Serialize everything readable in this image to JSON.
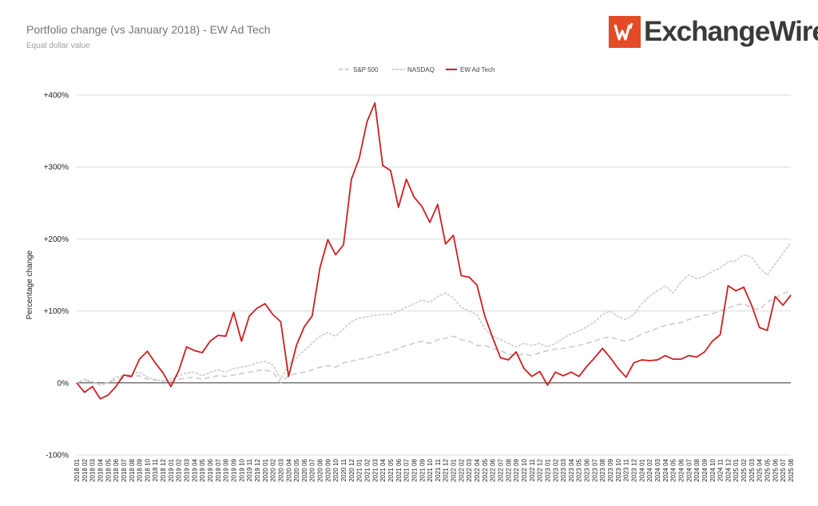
{
  "header": {
    "title": "Portfolio change (vs January 2018) - EW Ad Tech",
    "subtitle": "Equal dollar value",
    "logo_text": "ExchangeWire",
    "logo_mark": "W"
  },
  "colors": {
    "sp500": "#cccccc",
    "nasdaq": "#cccccc",
    "ewadtech": "#cc1f1f",
    "logo": "#e24b26"
  },
  "chart_data": {
    "type": "line",
    "title": "Portfolio change (vs January 2018) - EW Ad Tech",
    "subtitle": "Equal dollar value",
    "xlabel": "",
    "ylabel": "Percentage change",
    "ylim": [
      -100,
      400
    ],
    "yticks": [
      -100,
      0,
      100,
      200,
      300,
      400
    ],
    "ytick_labels": [
      "-100%",
      "0%",
      "+100%",
      "+200%",
      "+300%",
      "+400%"
    ],
    "grid": true,
    "legend_position": "top",
    "x": [
      "2018 01",
      "2018 02",
      "2018 03",
      "2018 04",
      "2018 05",
      "2018 06",
      "2018 07",
      "2018 08",
      "2018 09",
      "2018 10",
      "2018 11",
      "2018 12",
      "2019 01",
      "2019 02",
      "2019 03",
      "2019 04",
      "2019 05",
      "2019 06",
      "2019 07",
      "2019 08",
      "2019 09",
      "2019 10",
      "2019 11",
      "2019 12",
      "2020 01",
      "2020 02",
      "2020 03",
      "2020 04",
      "2020 05",
      "2020 06",
      "2020 07",
      "2020 08",
      "2020 09",
      "2020 10",
      "2020 11",
      "2020 12",
      "2021 01",
      "2021 02",
      "2021 03",
      "2021 04",
      "2021 05",
      "2021 06",
      "2021 07",
      "2021 08",
      "2021 09",
      "2021 10",
      "2021 11",
      "2021 12",
      "2022 01",
      "2022 02",
      "2022 03",
      "2022 04",
      "2022 05",
      "2022 06",
      "2022 07",
      "2022 08",
      "2022 09",
      "2022 10",
      "2022 11",
      "2022 12",
      "2023 01",
      "2023 02",
      "2023 03",
      "2023 04",
      "2023 05",
      "2023 06",
      "2023 07",
      "2023 08",
      "2023 09",
      "2023 10",
      "2023 11",
      "2023 12",
      "2024 01",
      "2024 02",
      "2024 03",
      "2024 04",
      "2024 05",
      "2024 06",
      "2024 07",
      "2024 08",
      "2024 09",
      "2024 10",
      "2024 11",
      "2024 12",
      "2025 01",
      "2025 02",
      "2025 03",
      "2025 04",
      "2025 05",
      "2025 06",
      "2025 07",
      "2025 08"
    ],
    "series": [
      {
        "name": "S&P 500",
        "style": "dashed",
        "color": "#cccccc",
        "values": [
          0,
          4,
          0,
          -2,
          0,
          5,
          7,
          9,
          10,
          5,
          4,
          3,
          2,
          5,
          7,
          8,
          5,
          8,
          10,
          9,
          11,
          13,
          15,
          17,
          18,
          15,
          0,
          10,
          13,
          15,
          18,
          22,
          24,
          22,
          28,
          30,
          33,
          35,
          38,
          40,
          44,
          48,
          52,
          55,
          58,
          55,
          60,
          62,
          65,
          60,
          58,
          52,
          52,
          48,
          45,
          40,
          38,
          40,
          38,
          42,
          45,
          47,
          48,
          50,
          52,
          55,
          58,
          62,
          64,
          60,
          58,
          62,
          68,
          72,
          76,
          80,
          82,
          84,
          88,
          92,
          94,
          96,
          100,
          104,
          108,
          110,
          104,
          102,
          112,
          118,
          124,
          128
        ]
      },
      {
        "name": "NASDAQ",
        "style": "dotted",
        "color": "#cccccc",
        "values": [
          0,
          5,
          2,
          -3,
          0,
          8,
          10,
          12,
          15,
          8,
          5,
          2,
          5,
          10,
          14,
          15,
          10,
          15,
          18,
          15,
          20,
          22,
          24,
          28,
          30,
          25,
          5,
          25,
          35,
          45,
          55,
          65,
          70,
          65,
          75,
          85,
          90,
          92,
          94,
          95,
          95,
          100,
          105,
          110,
          115,
          112,
          120,
          125,
          118,
          105,
          100,
          95,
          75,
          65,
          60,
          55,
          50,
          55,
          52,
          55,
          50,
          55,
          62,
          68,
          72,
          78,
          85,
          95,
          100,
          92,
          88,
          95,
          110,
          120,
          128,
          135,
          125,
          140,
          150,
          145,
          148,
          155,
          160,
          168,
          170,
          178,
          175,
          160,
          150,
          165,
          180,
          195
        ]
      },
      {
        "name": "EW Ad Tech",
        "style": "solid",
        "color": "#cc1f1f",
        "values": [
          0,
          -13,
          -5,
          -22,
          -17,
          -5,
          11,
          9,
          33,
          44,
          28,
          14,
          -5,
          17,
          50,
          45,
          42,
          58,
          66,
          65,
          98,
          58,
          93,
          104,
          110,
          95,
          85,
          9,
          52,
          78,
          93,
          160,
          199,
          178,
          192,
          283,
          312,
          363,
          389,
          302,
          295,
          244,
          283,
          258,
          245,
          223,
          248,
          193,
          205,
          149,
          147,
          136,
          93,
          63,
          35,
          32,
          43,
          20,
          9,
          16,
          -3,
          15,
          10,
          15,
          9,
          23,
          35,
          48,
          35,
          20,
          8,
          28,
          32,
          31,
          32,
          38,
          33,
          33,
          38,
          36,
          43,
          58,
          67,
          135,
          128,
          133,
          108,
          77,
          73,
          120,
          108,
          122
        ]
      }
    ]
  }
}
